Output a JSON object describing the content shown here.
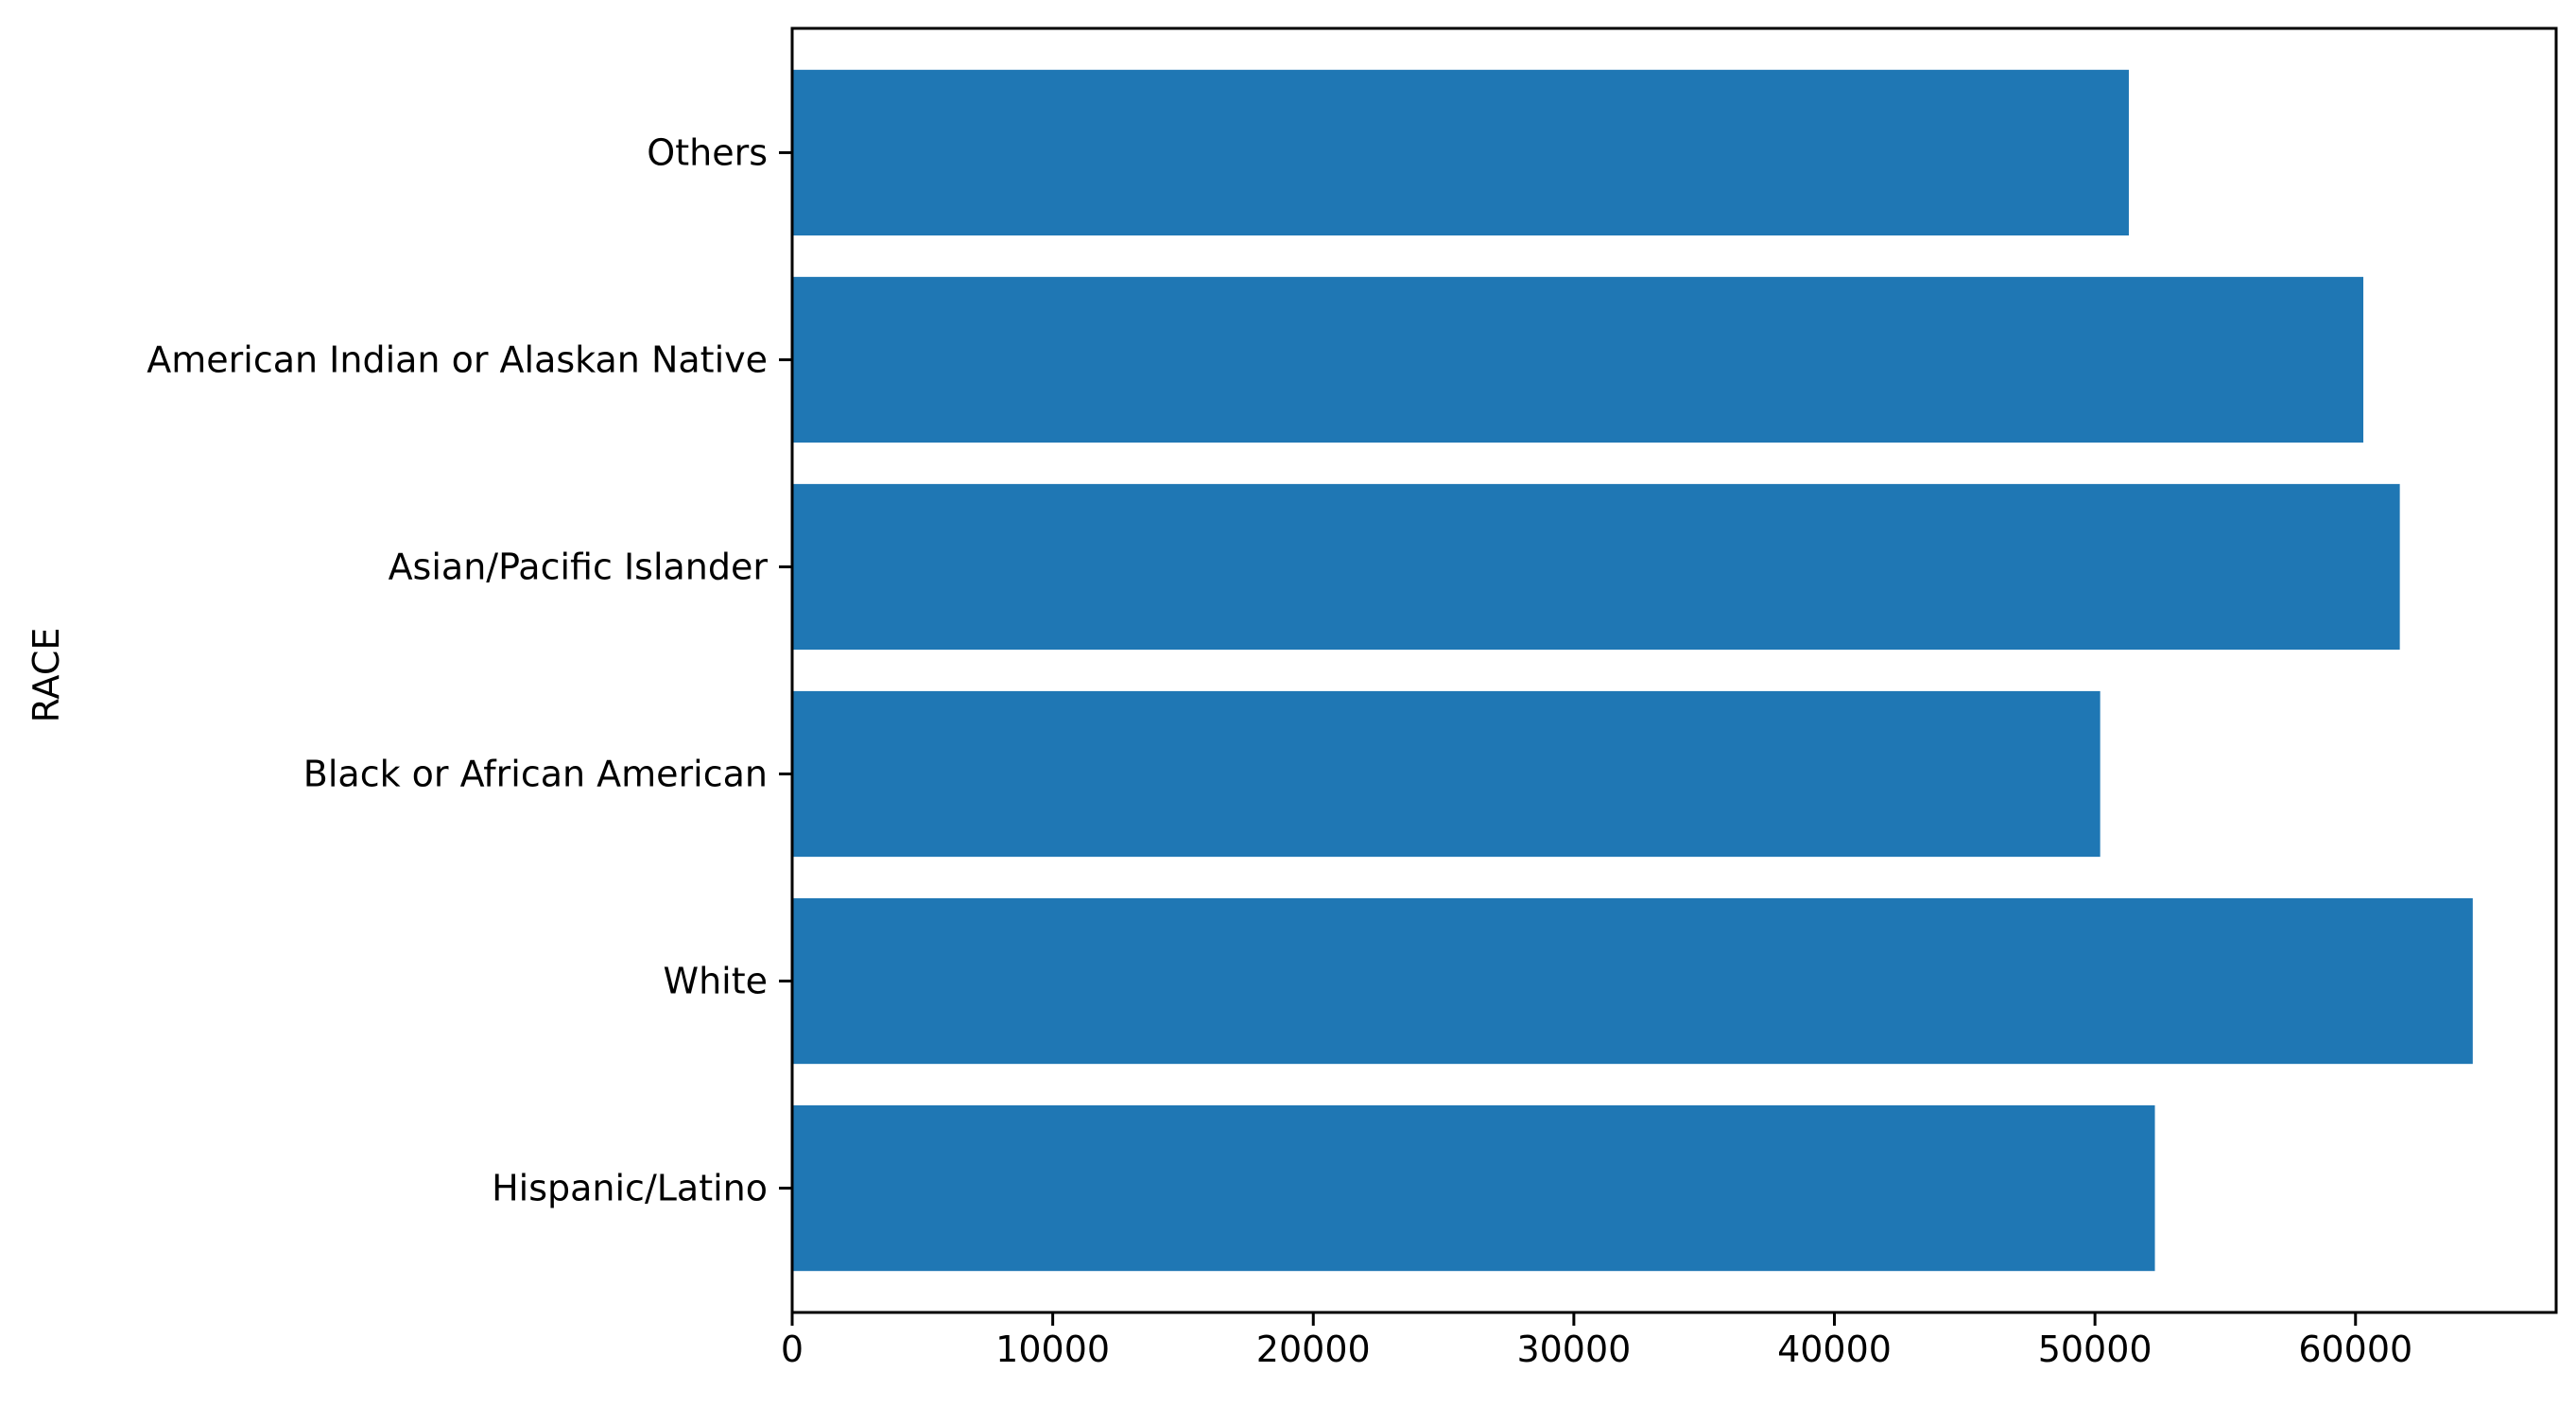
{
  "chart_data": {
    "type": "bar",
    "orientation": "horizontal",
    "title": "",
    "xlabel": "",
    "ylabel": "RACE",
    "categories": [
      "Hispanic/Latino",
      "White",
      "Black or African American",
      "Asian/Pacific Islander",
      "American Indian or Alaskan Native",
      "Others"
    ],
    "values": [
      52300,
      64500,
      50200,
      61700,
      60300,
      51300
    ],
    "xlim": [
      0,
      67700
    ],
    "xticks": [
      0,
      10000,
      20000,
      30000,
      40000,
      50000,
      60000
    ],
    "xtick_labels": [
      "0",
      "10000",
      "20000",
      "30000",
      "40000",
      "50000",
      "60000"
    ],
    "bar_color": "#1f77b4",
    "grid": false,
    "legend": false
  }
}
